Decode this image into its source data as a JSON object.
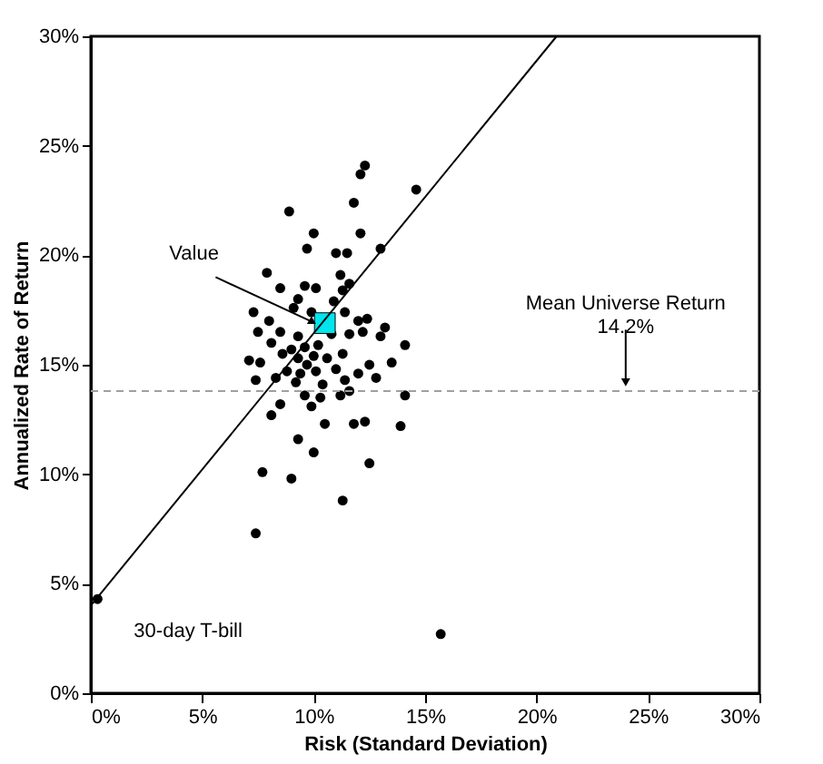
{
  "chart_data": {
    "type": "scatter",
    "xlabel": "Risk (Standard Deviation)",
    "ylabel": "Annualized Rate of Return",
    "xlim": [
      0,
      30
    ],
    "ylim": [
      0,
      30
    ],
    "xticks": [
      {
        "value": 0,
        "label": "0%"
      },
      {
        "value": 5,
        "label": "5%"
      },
      {
        "value": 10,
        "label": "10%"
      },
      {
        "value": 15,
        "label": "15%"
      },
      {
        "value": 20,
        "label": "20%"
      },
      {
        "value": 25,
        "label": "25%"
      },
      {
        "value": 30,
        "label": "30%"
      }
    ],
    "yticks": [
      {
        "value": 0,
        "label": "0%"
      },
      {
        "value": 5,
        "label": "5%"
      },
      {
        "value": 10,
        "label": "10%"
      },
      {
        "value": 15,
        "label": "15%"
      },
      {
        "value": 20,
        "label": "20%"
      },
      {
        "value": 25,
        "label": "25%"
      },
      {
        "value": 30,
        "label": "30%"
      }
    ],
    "grid": false,
    "series": [
      {
        "type": "scatter",
        "color": "#000000",
        "marker": "circle",
        "x": [
          12.3,
          12.1,
          14.6,
          8.9,
          11.8,
          10.0,
          12.1,
          9.7,
          13.0,
          11.5,
          11.0,
          7.9,
          11.2,
          8.5,
          9.6,
          9.3,
          10.1,
          11.3,
          11.6,
          10.9,
          9.1,
          7.3,
          8.0,
          9.9,
          11.4,
          12.0,
          12.4,
          13.2,
          7.5,
          8.5,
          9.3,
          10.8,
          11.6,
          12.2,
          13.0,
          8.1,
          9.0,
          9.6,
          10.2,
          8.6,
          9.3,
          10.0,
          10.6,
          11.3,
          7.1,
          7.6,
          9.7,
          12.5,
          13.5,
          8.8,
          9.4,
          10.1,
          11.0,
          12.0,
          7.4,
          8.3,
          9.2,
          10.4,
          11.4,
          12.8,
          14.1,
          9.6,
          10.3,
          11.2,
          11.6,
          14.1,
          8.5,
          9.9,
          8.1,
          10.5,
          11.8,
          12.3,
          13.9,
          9.3,
          10.0,
          7.7,
          9.0,
          12.5,
          11.3,
          7.4,
          15.7,
          0.3
        ],
        "values": [
          24.1,
          23.7,
          23.0,
          22.0,
          22.4,
          21.0,
          21.0,
          20.3,
          20.3,
          20.1,
          20.1,
          19.2,
          19.1,
          18.5,
          18.6,
          18.0,
          18.5,
          18.4,
          18.7,
          17.9,
          17.6,
          17.4,
          17.0,
          17.4,
          17.4,
          17.0,
          17.1,
          16.7,
          16.5,
          16.5,
          16.3,
          16.4,
          16.4,
          16.5,
          16.3,
          16.0,
          15.7,
          15.8,
          15.9,
          15.5,
          15.3,
          15.4,
          15.3,
          15.5,
          15.2,
          15.1,
          15.0,
          15.0,
          15.1,
          14.7,
          14.6,
          14.7,
          14.8,
          14.6,
          14.3,
          14.4,
          14.2,
          14.1,
          14.3,
          14.4,
          15.9,
          13.6,
          13.5,
          13.6,
          13.8,
          13.6,
          13.2,
          13.1,
          12.7,
          12.3,
          12.3,
          12.4,
          12.2,
          11.6,
          11.0,
          10.1,
          9.8,
          10.5,
          8.8,
          7.3,
          2.7,
          4.3
        ]
      },
      {
        "type": "scatter",
        "color": "#00e5ee",
        "marker": "square",
        "x": [
          10.5
        ],
        "values": [
          16.9
        ]
      },
      {
        "type": "line",
        "color": "#000000",
        "line_style": "solid",
        "x": [
          0,
          20.9
        ],
        "values": [
          4.0,
          30
        ]
      }
    ],
    "ref_lines": [
      {
        "axis": "y",
        "value": 13.8,
        "color": "#a0a0a0",
        "line_style": "dashed"
      }
    ],
    "annotations": [
      {
        "text": "Value",
        "x": 10.5,
        "y": 16.9
      },
      {
        "text": "Mean Universe Return\n14.2%",
        "x": 24,
        "y": 13.8
      },
      {
        "text": "30-day T-bill",
        "x": 0.3,
        "y": 4.3
      }
    ]
  }
}
